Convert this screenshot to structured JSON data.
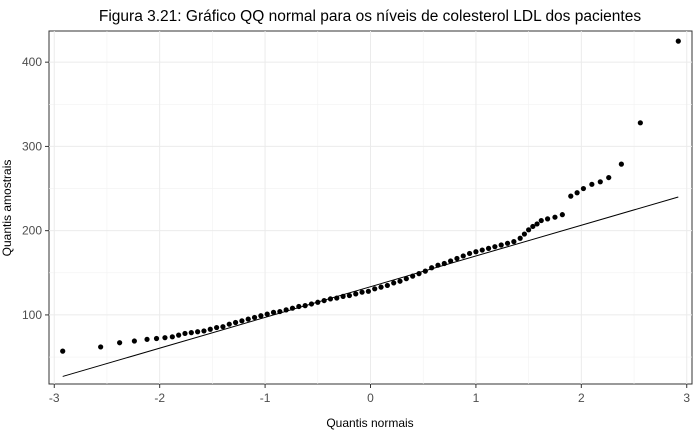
{
  "chart_data": {
    "type": "scatter",
    "title": "Figura 3.21: Gráfico QQ normal para os níveis de colesterol LDL dos pacientes",
    "xlabel": "Quantis normais",
    "ylabel": "Quantis amostrais",
    "xlim": [
      -3.05,
      3.05
    ],
    "ylim": [
      18,
      437
    ],
    "xticks": [
      -3,
      -2,
      -1,
      0,
      1,
      2,
      3
    ],
    "xtick_labels": [
      "-3",
      "-2",
      "-1",
      "0",
      "1",
      "2",
      "3"
    ],
    "yticks": [
      100,
      200,
      300,
      400
    ],
    "ytick_labels": [
      "100",
      "200",
      "300",
      "400"
    ],
    "grid": true,
    "reference_line": {
      "x": [
        -2.92,
        2.92
      ],
      "y": [
        27,
        240
      ]
    },
    "points": {
      "x": [
        -2.92,
        -2.56,
        -2.38,
        -2.24,
        -2.12,
        -2.03,
        -1.95,
        -1.88,
        -1.82,
        -1.76,
        -1.7,
        -1.64,
        -1.58,
        -1.52,
        -1.46,
        -1.4,
        -1.34,
        -1.28,
        -1.22,
        -1.16,
        -1.1,
        -1.04,
        -0.98,
        -0.92,
        -0.86,
        -0.8,
        -0.74,
        -0.68,
        -0.62,
        -0.56,
        -0.5,
        -0.44,
        -0.38,
        -0.32,
        -0.26,
        -0.2,
        -0.14,
        -0.08,
        -0.02,
        0.04,
        0.1,
        0.16,
        0.22,
        0.28,
        0.34,
        0.4,
        0.46,
        0.52,
        0.58,
        0.64,
        0.7,
        0.76,
        0.82,
        0.88,
        0.94,
        1.0,
        1.06,
        1.12,
        1.18,
        1.24,
        1.3,
        1.36,
        1.42,
        1.46,
        1.5,
        1.54,
        1.58,
        1.62,
        1.68,
        1.75,
        1.82,
        1.9,
        1.96,
        2.02,
        2.1,
        2.18,
        2.26,
        2.38,
        2.56,
        2.92
      ],
      "y": [
        57,
        62,
        67,
        69,
        71,
        72,
        73,
        74,
        76,
        78,
        79,
        80,
        81,
        83,
        85,
        86,
        89,
        91,
        93,
        95,
        97,
        99,
        101,
        103,
        104,
        106,
        108,
        110,
        111,
        113,
        115,
        117,
        119,
        120,
        122,
        123,
        125,
        127,
        128,
        131,
        133,
        135,
        138,
        140,
        143,
        146,
        149,
        152,
        156,
        159,
        161,
        164,
        167,
        170,
        173,
        175,
        177,
        179,
        181,
        183,
        185,
        187,
        191,
        196,
        201,
        205,
        208,
        212,
        214,
        216,
        219,
        241,
        245,
        250,
        255,
        258,
        263,
        279,
        328,
        425
      ]
    }
  }
}
